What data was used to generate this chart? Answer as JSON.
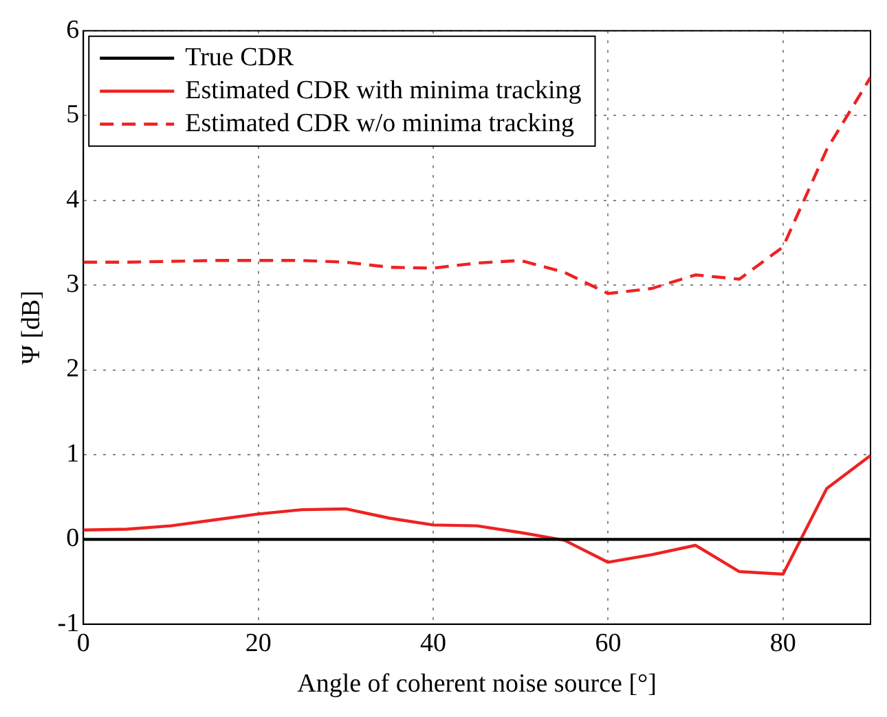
{
  "chart_data": {
    "type": "line",
    "xlabel": "Angle of coherent noise source [°]",
    "ylabel": "Ψ [dB]",
    "x": [
      0,
      5,
      10,
      15,
      20,
      25,
      30,
      35,
      40,
      45,
      50,
      55,
      60,
      65,
      70,
      75,
      80,
      85,
      90
    ],
    "series": [
      {
        "name": "True CDR",
        "color": "#000000",
        "x": [
          0,
          90
        ],
        "values": [
          0,
          0
        ],
        "line_style": "solid"
      },
      {
        "name": "Estimated CDR with minima tracking",
        "color": "#ee2222",
        "values": [
          0.11,
          0.12,
          0.16,
          0.23,
          0.3,
          0.35,
          0.36,
          0.25,
          0.17,
          0.16,
          0.08,
          -0.01,
          -0.27,
          -0.18,
          -0.07,
          -0.38,
          -0.41,
          0.6,
          0.99
        ],
        "line_style": "solid"
      },
      {
        "name": "Estimated CDR w/o minima tracking",
        "color": "#ee2222",
        "values": [
          3.27,
          3.27,
          3.28,
          3.29,
          3.29,
          3.29,
          3.27,
          3.21,
          3.2,
          3.26,
          3.29,
          3.15,
          2.9,
          2.96,
          3.12,
          3.07,
          3.45,
          4.6,
          5.45
        ],
        "line_style": "dashed"
      }
    ],
    "xlim": [
      0,
      90
    ],
    "xticks": [
      0,
      20,
      40,
      60,
      80
    ],
    "ylim": [
      -1,
      6
    ],
    "yticks": [
      -1,
      0,
      1,
      2,
      3,
      4,
      5,
      6
    ],
    "grid": true,
    "legend": "top left",
    "marker": "none"
  }
}
